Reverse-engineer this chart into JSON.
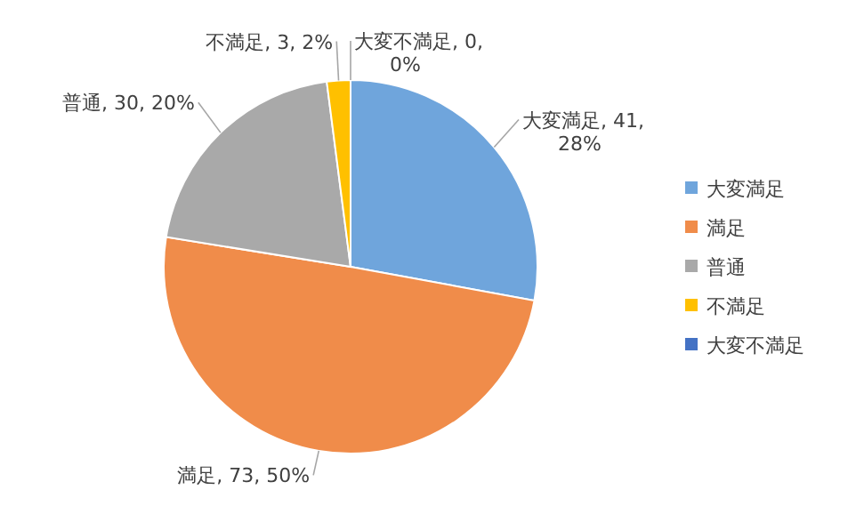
{
  "chart_data": {
    "type": "pie",
    "categories": [
      "大変満足",
      "満足",
      "普通",
      "不満足",
      "大変不満足"
    ],
    "values": [
      41,
      73,
      30,
      3,
      0
    ],
    "colors": [
      "#6fa5dc",
      "#f08c4a",
      "#a9a9a9",
      "#ffc000",
      "#4472c4"
    ],
    "value_labels": [
      "大変満足, 41, 28%",
      "満足, 73, 50%",
      "普通, 30, 20%",
      "不満足, 3, 2%",
      "大変不満足, 0, 0%"
    ],
    "legend": "right"
  }
}
